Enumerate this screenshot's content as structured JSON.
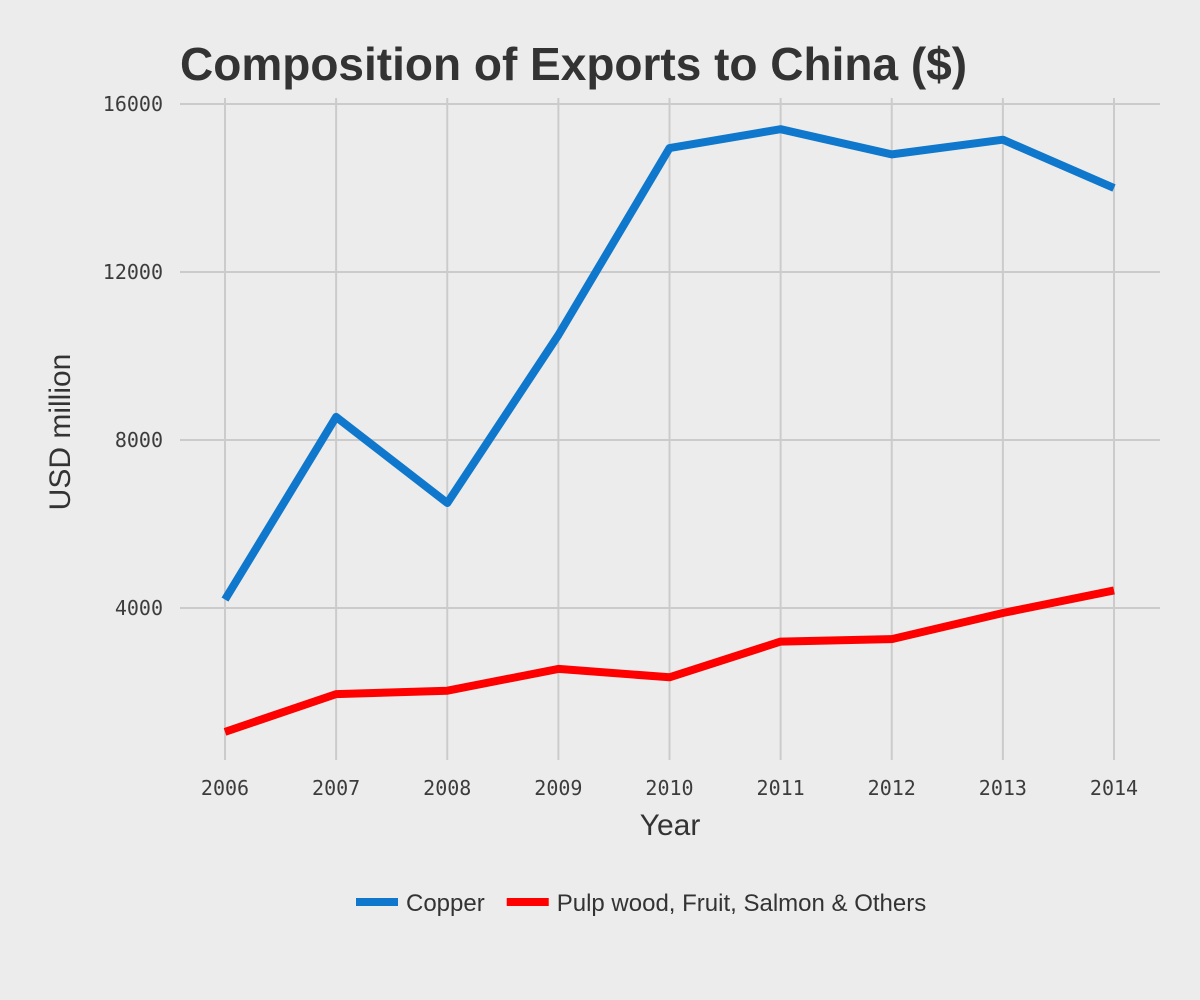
{
  "chart_data": {
    "type": "line",
    "title": "Composition of Exports to China ($)",
    "xlabel": "Year",
    "ylabel": "USD million",
    "x": [
      2006,
      2007,
      2008,
      2009,
      2010,
      2011,
      2012,
      2013,
      2014
    ],
    "xticks": [
      "2006",
      "2007",
      "2008",
      "2009",
      "2010",
      "2011",
      "2012",
      "2013",
      "2014"
    ],
    "yticks": [
      4000,
      8000,
      12000,
      16000
    ],
    "ylim": [
      600,
      16000
    ],
    "grid": true,
    "legend_position": "bottom",
    "series": [
      {
        "name": "Copper",
        "color": "#0f78cc",
        "values": [
          4200,
          8550,
          6500,
          10500,
          14950,
          15400,
          14800,
          15150,
          14000
        ]
      },
      {
        "name": "Pulp wood, Fruit, Salmon & Others",
        "color": "#ff0000",
        "values": [
          1050,
          1950,
          2030,
          2550,
          2350,
          3200,
          3260,
          3880,
          4420
        ]
      }
    ]
  }
}
